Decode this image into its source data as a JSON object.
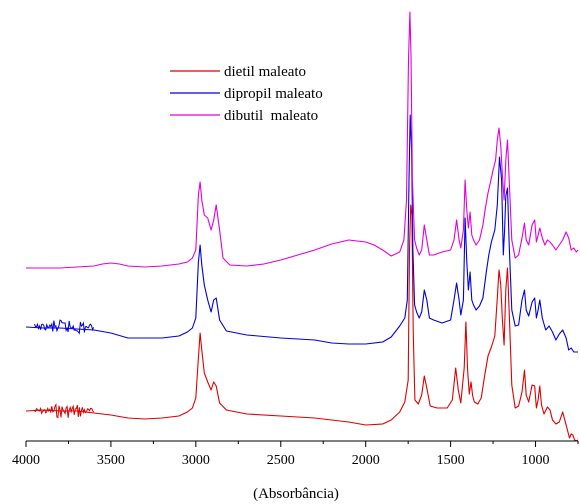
{
  "chart_data": {
    "type": "line",
    "title": "",
    "xlabel": "(Absorbância)",
    "ylabel": "",
    "x_reversed": true,
    "xlim": [
      4000,
      750
    ],
    "x_ticks": [
      4000,
      3500,
      3000,
      2500,
      2000,
      1500,
      1000
    ],
    "y_axis_visible": false,
    "grid": false,
    "legend_position": "top-left",
    "series": [
      {
        "name": "dietil maleato",
        "color": "#dd0000",
        "points": [
          [
            4000,
            411
          ],
          [
            3900,
            410
          ],
          [
            3800,
            411
          ],
          [
            3700,
            411
          ],
          [
            3600,
            413
          ],
          [
            3500,
            415
          ],
          [
            3400,
            418
          ],
          [
            3300,
            419
          ],
          [
            3200,
            418
          ],
          [
            3100,
            416
          ],
          [
            3050,
            412
          ],
          [
            3020,
            408
          ],
          [
            3000,
            398
          ],
          [
            2985,
            358
          ],
          [
            2975,
            333
          ],
          [
            2965,
            350
          ],
          [
            2950,
            373
          ],
          [
            2930,
            382
          ],
          [
            2910,
            390
          ],
          [
            2895,
            382
          ],
          [
            2880,
            386
          ],
          [
            2860,
            403
          ],
          [
            2820,
            410
          ],
          [
            2700,
            414
          ],
          [
            2500,
            416
          ],
          [
            2300,
            418
          ],
          [
            2100,
            422
          ],
          [
            2000,
            425
          ],
          [
            1900,
            424
          ],
          [
            1850,
            420
          ],
          [
            1800,
            412
          ],
          [
            1770,
            402
          ],
          [
            1750,
            380
          ],
          [
            1742,
            250
          ],
          [
            1735,
            205
          ],
          [
            1728,
            215
          ],
          [
            1720,
            330
          ],
          [
            1710,
            400
          ],
          [
            1690,
            404
          ],
          [
            1670,
            395
          ],
          [
            1655,
            376
          ],
          [
            1640,
            388
          ],
          [
            1620,
            406
          ],
          [
            1580,
            408
          ],
          [
            1520,
            408
          ],
          [
            1490,
            400
          ],
          [
            1470,
            368
          ],
          [
            1455,
            390
          ],
          [
            1440,
            403
          ],
          [
            1420,
            368
          ],
          [
            1410,
            322
          ],
          [
            1400,
            370
          ],
          [
            1390,
            394
          ],
          [
            1380,
            382
          ],
          [
            1370,
            396
          ],
          [
            1360,
            402
          ],
          [
            1340,
            404
          ],
          [
            1320,
            398
          ],
          [
            1300,
            376
          ],
          [
            1280,
            356
          ],
          [
            1260,
            347
          ],
          [
            1240,
            336
          ],
          [
            1225,
            298
          ],
          [
            1215,
            270
          ],
          [
            1205,
            284
          ],
          [
            1195,
            320
          ],
          [
            1185,
            345
          ],
          [
            1175,
            290
          ],
          [
            1165,
            268
          ],
          [
            1155,
            312
          ],
          [
            1140,
            385
          ],
          [
            1120,
            408
          ],
          [
            1100,
            406
          ],
          [
            1080,
            392
          ],
          [
            1065,
            370
          ],
          [
            1055,
            395
          ],
          [
            1040,
            402
          ],
          [
            1020,
            385
          ],
          [
            1005,
            386
          ],
          [
            995,
            408
          ],
          [
            985,
            400
          ],
          [
            975,
            386
          ],
          [
            965,
            405
          ],
          [
            950,
            414
          ],
          [
            930,
            407
          ],
          [
            915,
            410
          ],
          [
            900,
            420
          ],
          [
            880,
            424
          ],
          [
            860,
            422
          ],
          [
            840,
            412
          ],
          [
            820,
            425
          ],
          [
            800,
            438
          ],
          [
            790,
            434
          ],
          [
            780,
            435
          ],
          [
            770,
            440
          ],
          [
            760,
            441
          ],
          [
            750,
            440
          ]
        ]
      },
      {
        "name": "dipropil maleato",
        "color": "#0000dd",
        "points": [
          [
            4000,
            327
          ],
          [
            3900,
            328
          ],
          [
            3800,
            328
          ],
          [
            3700,
            329
          ],
          [
            3600,
            330
          ],
          [
            3500,
            333
          ],
          [
            3400,
            338
          ],
          [
            3300,
            338
          ],
          [
            3200,
            338
          ],
          [
            3100,
            336
          ],
          [
            3050,
            332
          ],
          [
            3020,
            328
          ],
          [
            3000,
            318
          ],
          [
            2985,
            262
          ],
          [
            2975,
            245
          ],
          [
            2965,
            265
          ],
          [
            2950,
            285
          ],
          [
            2930,
            300
          ],
          [
            2910,
            312
          ],
          [
            2895,
            300
          ],
          [
            2880,
            298
          ],
          [
            2860,
            320
          ],
          [
            2820,
            331
          ],
          [
            2700,
            335
          ],
          [
            2500,
            338
          ],
          [
            2300,
            340
          ],
          [
            2200,
            343
          ],
          [
            2100,
            344
          ],
          [
            2000,
            344
          ],
          [
            1900,
            342
          ],
          [
            1850,
            337
          ],
          [
            1800,
            326
          ],
          [
            1770,
            318
          ],
          [
            1755,
            300
          ],
          [
            1745,
            180
          ],
          [
            1738,
            115
          ],
          [
            1730,
            150
          ],
          [
            1722,
            250
          ],
          [
            1712,
            305
          ],
          [
            1700,
            312
          ],
          [
            1685,
            318
          ],
          [
            1670,
            312
          ],
          [
            1655,
            290
          ],
          [
            1640,
            300
          ],
          [
            1625,
            318
          ],
          [
            1600,
            320
          ],
          [
            1550,
            323
          ],
          [
            1500,
            320
          ],
          [
            1480,
            300
          ],
          [
            1465,
            283
          ],
          [
            1450,
            300
          ],
          [
            1440,
            315
          ],
          [
            1425,
            300
          ],
          [
            1415,
            218
          ],
          [
            1405,
            262
          ],
          [
            1395,
            290
          ],
          [
            1385,
            272
          ],
          [
            1375,
            300
          ],
          [
            1365,
            305
          ],
          [
            1350,
            310
          ],
          [
            1330,
            306
          ],
          [
            1310,
            298
          ],
          [
            1290,
            272
          ],
          [
            1275,
            255
          ],
          [
            1260,
            242
          ],
          [
            1240,
            230
          ],
          [
            1225,
            205
          ],
          [
            1212,
            157
          ],
          [
            1200,
            180
          ],
          [
            1190,
            255
          ],
          [
            1182,
            230
          ],
          [
            1175,
            196
          ],
          [
            1165,
            188
          ],
          [
            1155,
            245
          ],
          [
            1140,
            310
          ],
          [
            1120,
            326
          ],
          [
            1100,
            325
          ],
          [
            1080,
            300
          ],
          [
            1065,
            290
          ],
          [
            1055,
            310
          ],
          [
            1040,
            316
          ],
          [
            1020,
            302
          ],
          [
            1005,
            298
          ],
          [
            995,
            318
          ],
          [
            985,
            310
          ],
          [
            975,
            300
          ],
          [
            960,
            318
          ],
          [
            940,
            330
          ],
          [
            920,
            326
          ],
          [
            900,
            332
          ],
          [
            880,
            340
          ],
          [
            860,
            334
          ],
          [
            840,
            330
          ],
          [
            820,
            338
          ],
          [
            805,
            350
          ],
          [
            790,
            348
          ],
          [
            775,
            352
          ],
          [
            760,
            352
          ],
          [
            750,
            352
          ]
        ]
      },
      {
        "name": "dibutil  maleato",
        "color": "#e000e0",
        "points": [
          [
            4000,
            268
          ],
          [
            3900,
            268
          ],
          [
            3800,
            268
          ],
          [
            3700,
            267
          ],
          [
            3600,
            266
          ],
          [
            3550,
            264
          ],
          [
            3500,
            263
          ],
          [
            3450,
            264
          ],
          [
            3400,
            266
          ],
          [
            3300,
            267
          ],
          [
            3200,
            266
          ],
          [
            3100,
            264
          ],
          [
            3050,
            262
          ],
          [
            3020,
            258
          ],
          [
            3000,
            250
          ],
          [
            2985,
            195
          ],
          [
            2975,
            182
          ],
          [
            2965,
            200
          ],
          [
            2950,
            215
          ],
          [
            2930,
            218
          ],
          [
            2910,
            230
          ],
          [
            2895,
            220
          ],
          [
            2880,
            205
          ],
          [
            2860,
            230
          ],
          [
            2840,
            258
          ],
          [
            2800,
            265
          ],
          [
            2700,
            266
          ],
          [
            2600,
            264
          ],
          [
            2500,
            260
          ],
          [
            2400,
            255
          ],
          [
            2300,
            250
          ],
          [
            2200,
            244
          ],
          [
            2100,
            240
          ],
          [
            2000,
            242
          ],
          [
            1950,
            245
          ],
          [
            1900,
            250
          ],
          [
            1850,
            256
          ],
          [
            1800,
            252
          ],
          [
            1775,
            240
          ],
          [
            1760,
            200
          ],
          [
            1748,
            60
          ],
          [
            1740,
            12
          ],
          [
            1733,
            55
          ],
          [
            1725,
            180
          ],
          [
            1712,
            240
          ],
          [
            1700,
            248
          ],
          [
            1685,
            255
          ],
          [
            1670,
            250
          ],
          [
            1655,
            225
          ],
          [
            1640,
            240
          ],
          [
            1625,
            255
          ],
          [
            1600,
            255
          ],
          [
            1550,
            252
          ],
          [
            1500,
            250
          ],
          [
            1480,
            240
          ],
          [
            1465,
            220
          ],
          [
            1450,
            240
          ],
          [
            1440,
            248
          ],
          [
            1425,
            230
          ],
          [
            1415,
            180
          ],
          [
            1405,
            210
          ],
          [
            1395,
            228
          ],
          [
            1385,
            212
          ],
          [
            1375,
            235
          ],
          [
            1365,
            240
          ],
          [
            1350,
            245
          ],
          [
            1330,
            240
          ],
          [
            1310,
            225
          ],
          [
            1295,
            208
          ],
          [
            1280,
            193
          ],
          [
            1265,
            182
          ],
          [
            1250,
            170
          ],
          [
            1235,
            160
          ],
          [
            1225,
            140
          ],
          [
            1215,
            128
          ],
          [
            1205,
            145
          ],
          [
            1195,
            175
          ],
          [
            1185,
            200
          ],
          [
            1175,
            160
          ],
          [
            1165,
            140
          ],
          [
            1155,
            180
          ],
          [
            1140,
            240
          ],
          [
            1120,
            258
          ],
          [
            1100,
            255
          ],
          [
            1080,
            238
          ],
          [
            1065,
            223
          ],
          [
            1055,
            240
          ],
          [
            1040,
            245
          ],
          [
            1020,
            225
          ],
          [
            1005,
            220
          ],
          [
            995,
            242
          ],
          [
            985,
            235
          ],
          [
            975,
            228
          ],
          [
            960,
            238
          ],
          [
            945,
            245
          ],
          [
            930,
            240
          ],
          [
            915,
            242
          ],
          [
            900,
            245
          ],
          [
            880,
            250
          ],
          [
            860,
            245
          ],
          [
            840,
            240
          ],
          [
            820,
            232
          ],
          [
            805,
            238
          ],
          [
            790,
            250
          ],
          [
            775,
            248
          ],
          [
            760,
            252
          ],
          [
            750,
            250
          ]
        ]
      }
    ]
  }
}
